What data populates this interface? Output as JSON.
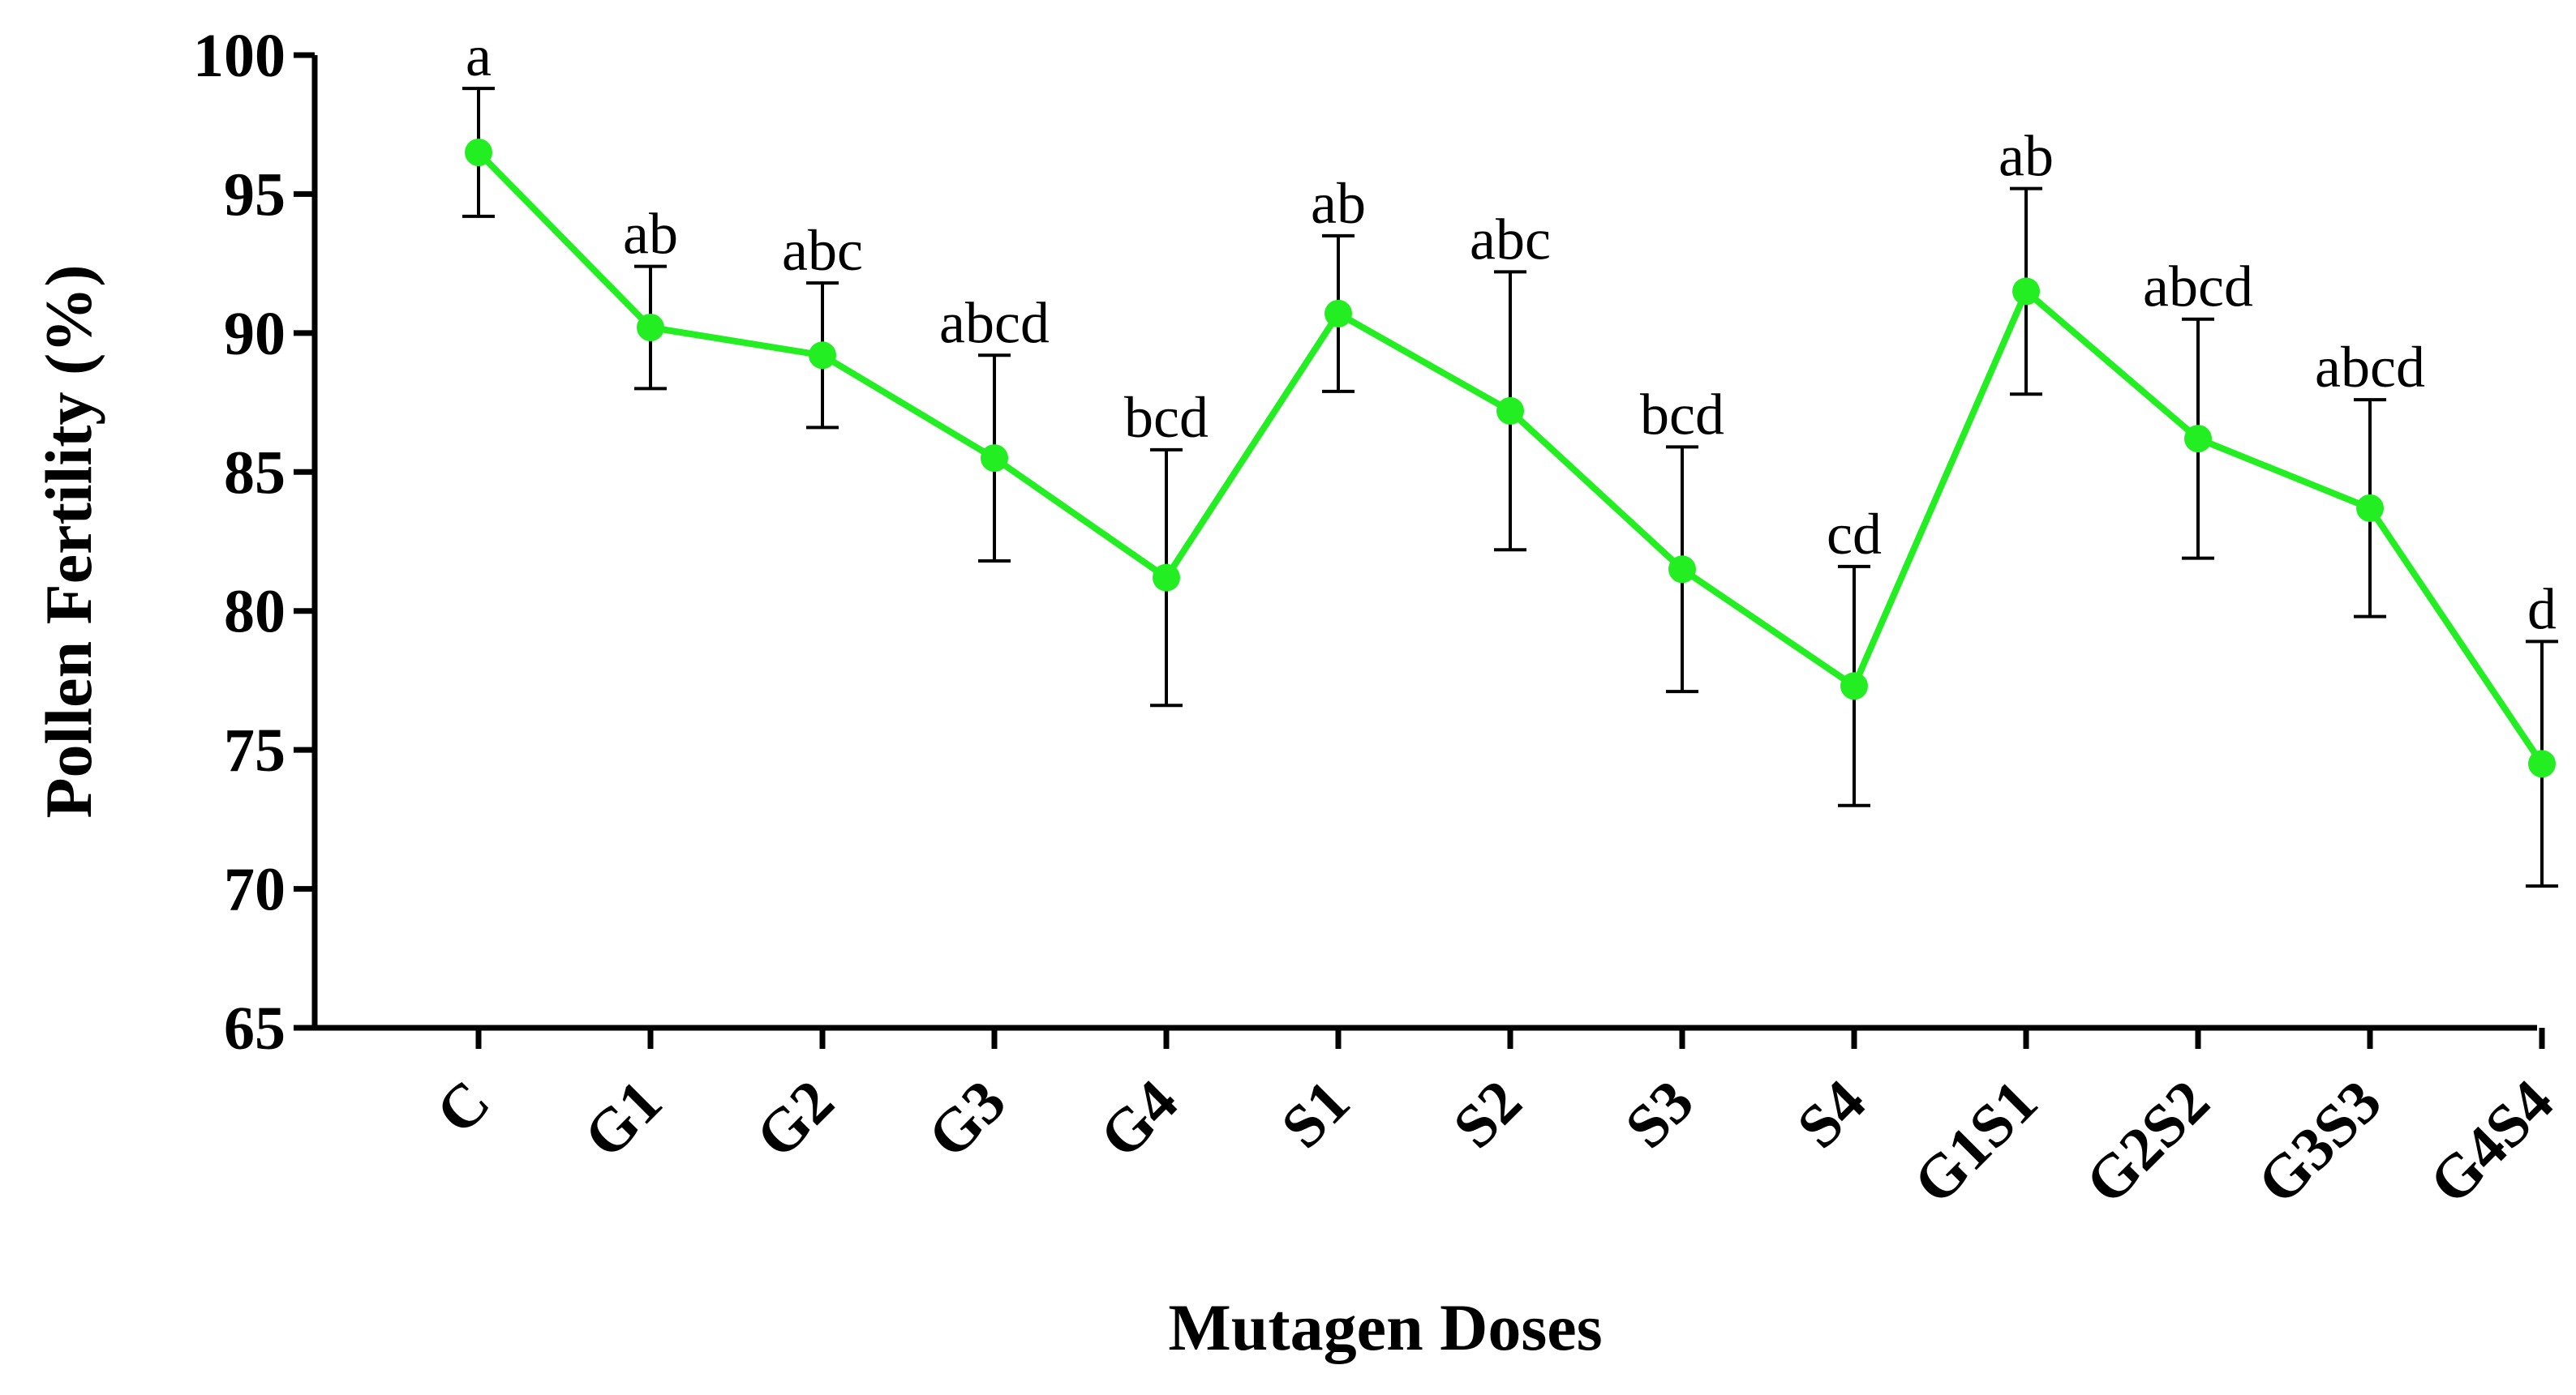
{
  "chart_data": {
    "type": "line",
    "title": "",
    "xlabel": "Mutagen Doses",
    "ylabel": "Pollen Fertility (%)",
    "ylim": [
      65,
      100
    ],
    "yticks": [
      "65",
      "70",
      "75",
      "80",
      "85",
      "90",
      "95",
      "100"
    ],
    "grid": false,
    "legend": "none",
    "line_color": "#22ee22",
    "categories": [
      "C",
      "G1",
      "G2",
      "G3",
      "G4",
      "S1",
      "S2",
      "S3",
      "S4",
      "G1S1",
      "G2S2",
      "G3S3",
      "G4S4"
    ],
    "series": [
      {
        "values": [
          96.5,
          90.2,
          89.2,
          85.5,
          81.2,
          90.7,
          87.2,
          81.5,
          77.3,
          91.5,
          86.2,
          83.7,
          74.5
        ],
        "error": [
          2.3,
          2.2,
          2.6,
          3.7,
          4.6,
          2.8,
          5.0,
          4.4,
          4.3,
          3.7,
          4.3,
          3.9,
          4.4
        ]
      }
    ],
    "annotations": [
      "a",
      "ab",
      "abc",
      "abcd",
      "bcd",
      "ab",
      "abc",
      "bcd",
      "cd",
      "ab",
      "abcd",
      "abcd",
      "d"
    ]
  }
}
